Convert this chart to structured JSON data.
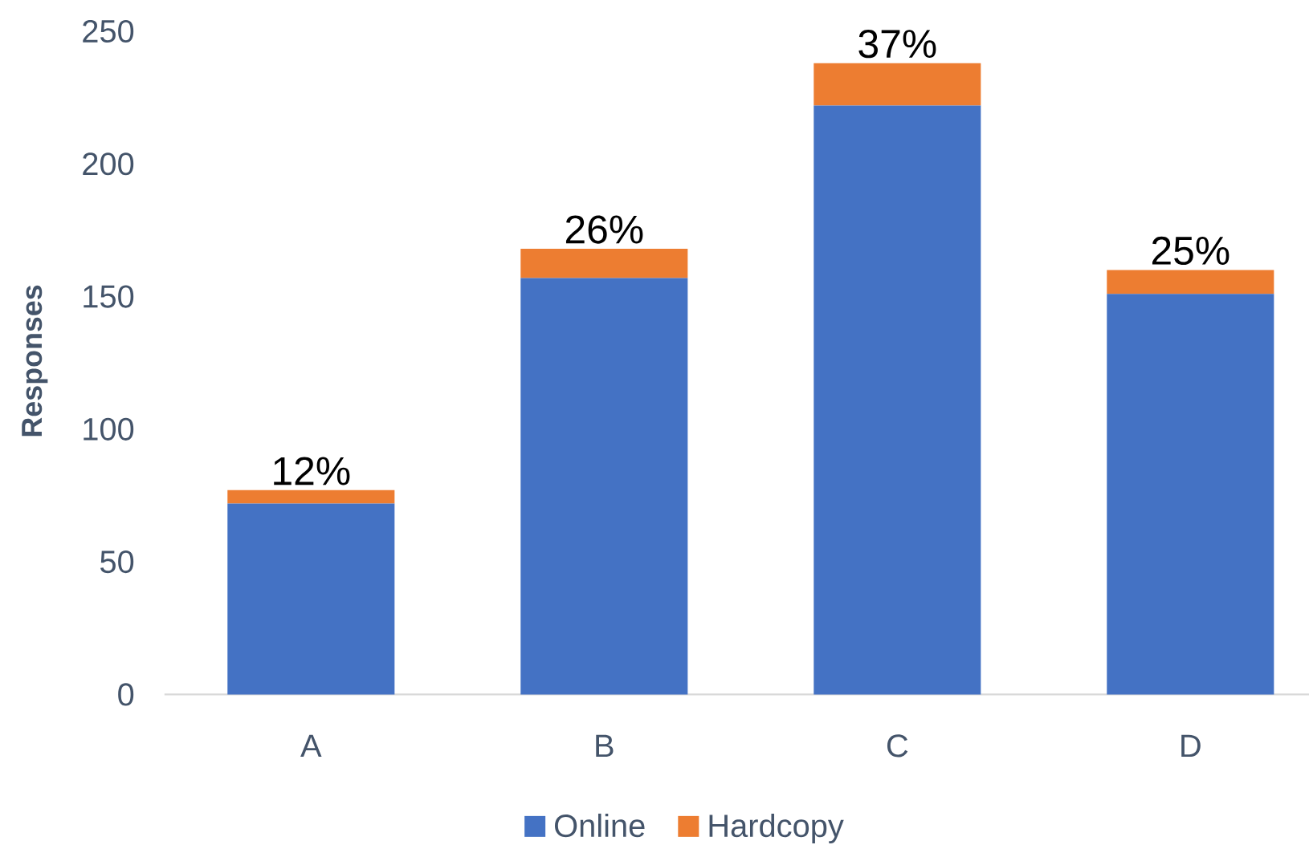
{
  "chart_data": {
    "type": "bar",
    "stacked": true,
    "ylabel": "Responses",
    "categories": [
      "A",
      "B",
      "C",
      "D"
    ],
    "series": [
      {
        "name": "Online",
        "color": "#4472c4",
        "values": [
          72,
          157,
          222,
          151
        ]
      },
      {
        "name": "Hardcopy",
        "color": "#ed7d31",
        "values": [
          5,
          11,
          16,
          9
        ]
      }
    ],
    "ylim": [
      0,
      250
    ],
    "yticks": [
      0,
      50,
      100,
      150,
      200,
      250
    ],
    "legend": "bottom",
    "annotations": [
      {
        "text": "12%",
        "x": "A",
        "y": 77
      },
      {
        "text": "26%",
        "x": "B",
        "y": 168
      },
      {
        "text": "37%",
        "x": "C",
        "y": 238
      },
      {
        "text": "25%",
        "x": "D",
        "y": 160
      }
    ]
  }
}
